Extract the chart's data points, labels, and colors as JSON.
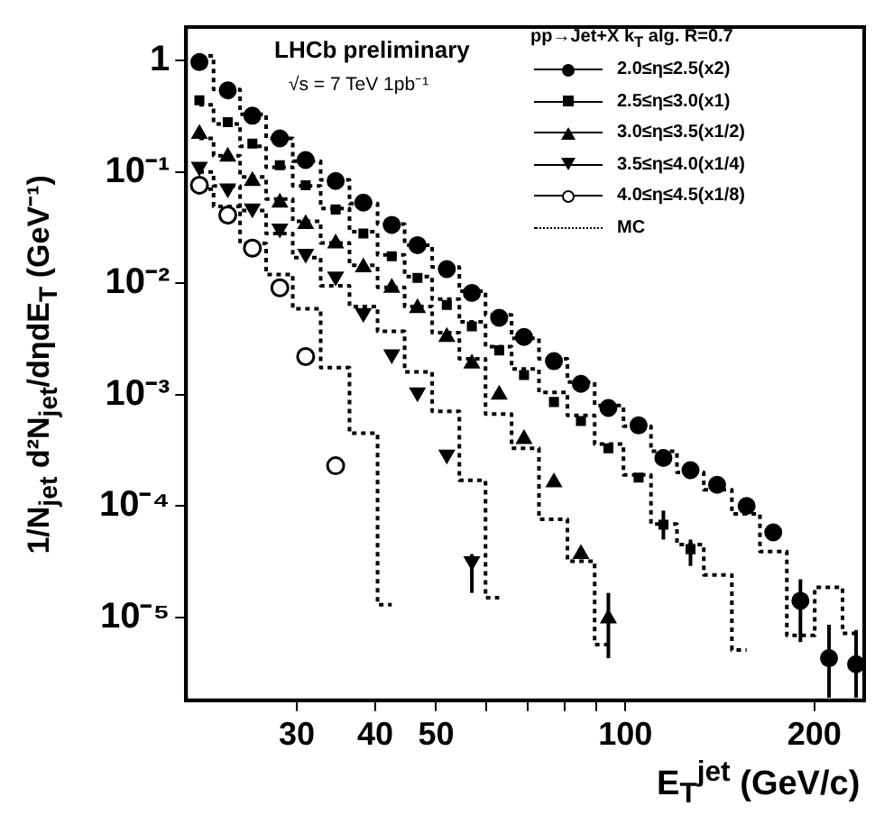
{
  "chart_data": {
    "type": "scatter",
    "ylabel": "1/N$_{jet}$ d²N$_{jet}$/dηdE$_{T}$ (GeV⁻¹)",
    "xlabel": "E$_{T}$$^{jet}$ (GeV/c)",
    "legend_title": "pp→Jet+X  k$_{T}$ alg.  R=0.7",
    "annotations": [
      "LHCb preliminary",
      "√s = 7 TeV   1pb⁻¹"
    ],
    "log": "xy",
    "grid": false,
    "legend": "top right",
    "xlim": [
      20,
      240
    ],
    "xticks": [
      30,
      40,
      50,
      {
        "value": 60,
        "label": null
      },
      {
        "value": 70,
        "label": null
      },
      {
        "value": 80,
        "label": null
      },
      {
        "value": 90,
        "label": null
      },
      100,
      200
    ],
    "ylim": [
      1.8e-06,
      2
    ],
    "yticks": [
      {
        "value": 1e-05,
        "label": "10⁻⁵"
      },
      {
        "value": 0.0001,
        "label": "10⁻⁴"
      },
      {
        "value": 0.001,
        "label": "10⁻³"
      },
      {
        "value": 0.01,
        "label": "10⁻²"
      },
      {
        "value": 0.1,
        "label": "10⁻¹"
      },
      1
    ],
    "x": [
      21,
      23.3,
      25.5,
      28.2,
      31,
      34.6,
      38.3,
      42.5,
      46.7,
      52,
      57,
      63,
      69,
      77,
      85,
      94,
      105,
      115,
      127,
      140,
      156,
      172,
      190,
      211,
      233
    ],
    "series": [
      {
        "name": "2.0≤η≤2.5(x2)",
        "marker": "circle",
        "color": "#000000",
        "values": [
          0.97,
          0.54,
          0.32,
          0.2,
          0.128,
          0.083,
          0.053,
          0.0335,
          0.022,
          0.0134,
          0.0082,
          0.0049,
          0.0033,
          0.002,
          0.00125,
          0.00076,
          0.00053,
          0.00027,
          0.00021,
          0.000155,
          0.0001,
          5.8e-05,
          1.41e-05,
          4.3e-06,
          3.8e-06
        ],
        "errors": [
          null,
          null,
          null,
          null,
          null,
          null,
          null,
          null,
          null,
          null,
          null,
          null,
          null,
          null,
          null,
          null,
          null,
          null,
          null,
          null,
          null,
          null,
          [
            6e-06,
            2.2e-05
          ],
          [
            1.9e-06,
            8.6e-06
          ],
          [
            1.9e-06,
            7.7e-06
          ]
        ]
      },
      {
        "name": "2.5≤η≤3.0(x1)",
        "marker": "square",
        "color": "#000000",
        "values": [
          0.44,
          0.28,
          0.18,
          0.115,
          0.076,
          0.046,
          0.028,
          0.0175,
          0.0112,
          0.0064,
          0.0041,
          0.0025,
          0.0015,
          0.00086,
          0.00058,
          0.00033,
          0.00018,
          6.8e-05,
          4.1e-05,
          null,
          null,
          null,
          null,
          null,
          null
        ],
        "errors": [
          null,
          null,
          null,
          null,
          null,
          null,
          null,
          null,
          null,
          null,
          null,
          null,
          null,
          null,
          null,
          null,
          null,
          [
            5e-05,
            9.1e-05
          ],
          [
            2.9e-05,
            5e-05
          ],
          null,
          null,
          null,
          null,
          null,
          null
        ]
      },
      {
        "name": "3.0≤η≤3.5(x1/2)",
        "marker": "triangle",
        "color": "#000000",
        "values": [
          0.22,
          0.137,
          0.083,
          0.053,
          0.034,
          0.0228,
          0.0139,
          0.0091,
          0.006,
          0.0033,
          0.0019,
          0.001,
          0.0004,
          0.000163,
          3.7e-05,
          9.8e-06,
          null,
          null,
          null,
          null,
          null,
          null,
          null,
          null,
          null
        ],
        "errors": [
          null,
          null,
          null,
          null,
          null,
          null,
          null,
          null,
          null,
          null,
          null,
          null,
          null,
          null,
          null,
          [
            4.3e-06,
            1.66e-05
          ],
          null,
          null,
          null,
          null,
          null,
          null,
          null,
          null,
          null
        ]
      },
      {
        "name": "3.5≤η≤4.0(x1/4)",
        "marker": "triangle-down",
        "color": "#000000",
        "values": [
          0.111,
          0.071,
          0.047,
          0.031,
          0.0184,
          0.0115,
          0.0054,
          0.0023,
          0.00105,
          0.00029,
          3.2e-05,
          null,
          null,
          null,
          null,
          null,
          null,
          null,
          null,
          null,
          null,
          null,
          null,
          null,
          null
        ],
        "errors": [
          null,
          null,
          null,
          null,
          null,
          null,
          null,
          null,
          null,
          null,
          [
            1.66e-05,
            3.7e-05
          ],
          null,
          null,
          null,
          null,
          null,
          null,
          null,
          null,
          null,
          null,
          null,
          null,
          null,
          null
        ]
      },
      {
        "name": "4.0≤η≤4.5(x1/8)",
        "marker": "circle-open",
        "color": "#000000",
        "values": [
          0.076,
          0.041,
          0.0207,
          0.0091,
          0.0022,
          0.00023,
          null,
          null,
          null,
          null,
          null,
          null,
          null,
          null,
          null,
          null,
          null,
          null,
          null,
          null,
          null,
          null,
          null,
          null,
          null
        ]
      },
      {
        "name": "MC",
        "type": "step",
        "marker": "none",
        "line_style": "dotted",
        "color": "#000000",
        "values": [
          1.1,
          0.55,
          0.33,
          0.2,
          0.125,
          0.085,
          0.052,
          0.034,
          0.022,
          0.014,
          0.0085,
          0.0052,
          0.0032,
          0.0021,
          0.0013,
          0.0008,
          0.00052,
          0.00031,
          0.0002,
          0.00014,
          8.5e-05,
          3.9e-05,
          6.9e-06,
          1.86e-05,
          7.2e-06
        ]
      },
      {
        "type": "step",
        "marker": "none",
        "line_style": "dotted",
        "color": "#000000",
        "values": [
          0.4,
          0.27,
          0.17,
          0.11,
          0.075,
          0.047,
          0.029,
          0.018,
          0.0115,
          0.0072,
          0.0045,
          0.0027,
          0.0017,
          0.00105,
          0.00065,
          0.00036,
          0.00019,
          6.9e-05,
          4.5e-05,
          2.4e-05,
          5.1e-06,
          null,
          null,
          null,
          null
        ]
      },
      {
        "type": "step",
        "marker": "none",
        "line_style": "dotted",
        "color": "#000000",
        "values": [
          0.2,
          0.14,
          0.09,
          0.057,
          0.036,
          0.023,
          0.0145,
          0.0092,
          0.0062,
          0.0036,
          0.0021,
          0.00067,
          0.00033,
          7.6e-05,
          3.2e-05,
          5.7e-06,
          null,
          null,
          null,
          null,
          null,
          null,
          null,
          null,
          null
        ]
      },
      {
        "type": "step",
        "marker": "none",
        "line_style": "dotted",
        "color": "#000000",
        "values": [
          0.1,
          0.075,
          0.045,
          0.028,
          0.017,
          0.0095,
          0.0062,
          0.0037,
          0.0016,
          0.00071,
          0.00017,
          1.5e-05,
          null,
          null,
          null,
          null,
          null,
          null,
          null,
          null,
          null,
          null,
          null,
          null,
          null
        ]
      },
      {
        "type": "step",
        "marker": "none",
        "line_style": "dotted",
        "color": "#000000",
        "values": [
          0.07,
          0.049,
          0.0228,
          0.012,
          0.0059,
          0.00175,
          0.00045,
          1.3e-05,
          null,
          null,
          null,
          null,
          null,
          null,
          null,
          null,
          null,
          null,
          null,
          null,
          null,
          null,
          null,
          null,
          null
        ]
      }
    ]
  }
}
